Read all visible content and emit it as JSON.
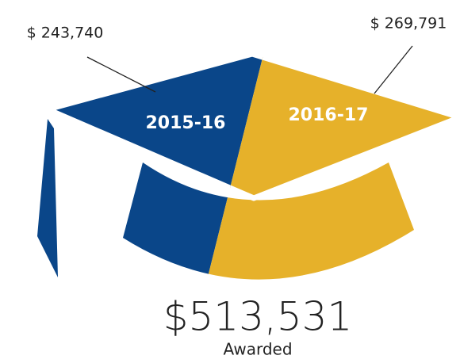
{
  "chart_data": {
    "type": "pie",
    "categories": [
      "2015-16",
      "2016-17"
    ],
    "values": [
      243740,
      269791
    ],
    "value_labels": [
      "$ 243,740",
      "$ 269,791"
    ],
    "colors": [
      "#0a4689",
      "#e6b12a"
    ],
    "total": {
      "value": 513531,
      "label": "$513,531"
    },
    "total_caption": "Awarded"
  }
}
